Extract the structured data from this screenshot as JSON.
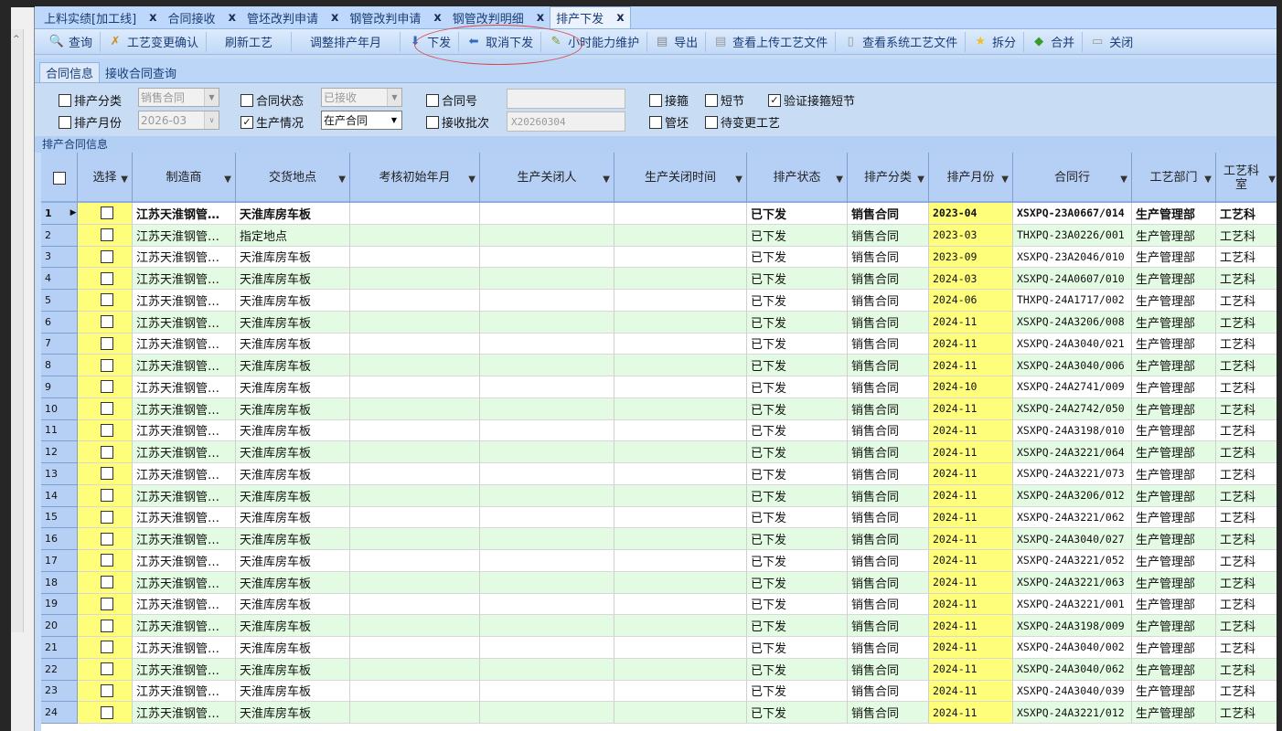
{
  "tabs": [
    {
      "label": "上料实绩[加工线]"
    },
    {
      "label": "合同接收"
    },
    {
      "label": "管坯改判申请"
    },
    {
      "label": "钢管改判申请"
    },
    {
      "label": "钢管改判明细"
    },
    {
      "label": "排产下发",
      "active": true
    }
  ],
  "toolbar": [
    {
      "icon": "search-icon",
      "glyph": "🔍",
      "label": "查询"
    },
    {
      "icon": "tools-icon",
      "glyph": "✗",
      "label": "工艺变更确认"
    },
    {
      "icon": "",
      "glyph": "",
      "label": "刷新工艺"
    },
    {
      "icon": "",
      "glyph": "",
      "label": "调整排产年月"
    },
    {
      "icon": "arrow-down-icon",
      "glyph": "⬇",
      "label": "下发"
    },
    {
      "icon": "arrow-left-icon",
      "glyph": "⬅",
      "label": "取消下发"
    },
    {
      "icon": "edit-icon",
      "glyph": "✎",
      "label": "小时能力维护"
    },
    {
      "icon": "export-icon",
      "glyph": "▤",
      "label": "导出"
    },
    {
      "icon": "document-icon",
      "glyph": "▤",
      "label": "查看上传工艺文件"
    },
    {
      "icon": "document-icon",
      "glyph": "▯",
      "label": "查看系统工艺文件"
    },
    {
      "icon": "star-icon",
      "glyph": "★",
      "label": "拆分"
    },
    {
      "icon": "merge-icon",
      "glyph": "◆",
      "label": "合并"
    },
    {
      "icon": "close-icon",
      "glyph": "▭",
      "label": "关闭"
    }
  ],
  "subtabs": [
    {
      "label": "合同信息"
    },
    {
      "label": "接收合同查询"
    }
  ],
  "filters": {
    "paichan_fenlei": {
      "label": "排产分类",
      "checked": false,
      "value": "销售合同"
    },
    "paichan_yuefen": {
      "label": "排产月份",
      "checked": false,
      "value": "2026-03"
    },
    "hetong_zhuangtai": {
      "label": "合同状态",
      "checked": false,
      "value": "已接收"
    },
    "shengchan_qingkuang": {
      "label": "生产情况",
      "checked": true,
      "value": "在产合同"
    },
    "hetong_hao": {
      "label": "合同号",
      "checked": false,
      "value": ""
    },
    "jieshou_pici": {
      "label": "接收批次",
      "checked": false,
      "value": "X20260304"
    },
    "jiegu": {
      "label": "接箍",
      "checked": false
    },
    "duanjie": {
      "label": "短节",
      "checked": false
    },
    "yanzheng": {
      "label": "验证接箍短节",
      "checked": true
    },
    "guanpi": {
      "label": "管坯",
      "checked": false
    },
    "daibiangeng": {
      "label": "待变更工艺",
      "checked": false
    }
  },
  "section_label": "排产合同信息",
  "columns": [
    "选择",
    "制造商",
    "交货地点",
    "考核初始年月",
    "生产关闭人",
    "生产关闭时间",
    "排产状态",
    "排产分类",
    "排产月份",
    "合同行",
    "工艺部门",
    "工艺科室"
  ],
  "colors": {
    "header": "#b6d0f5",
    "alt_row": "#e2fbe2",
    "yellow": "#fffe7a"
  },
  "rows": [
    [
      "1",
      "江苏天淮钢管…",
      "天淮库房车板",
      "",
      "",
      "",
      "已下发",
      "销售合同",
      "2023-04",
      "XSXPQ-23A0667/014",
      "生产管理部",
      "工艺科"
    ],
    [
      "2",
      "江苏天淮钢管…",
      "指定地点",
      "",
      "",
      "",
      "已下发",
      "销售合同",
      "2023-03",
      "THXPQ-23A0226/001",
      "生产管理部",
      "工艺科"
    ],
    [
      "3",
      "江苏天淮钢管…",
      "天淮库房车板",
      "",
      "",
      "",
      "已下发",
      "销售合同",
      "2023-09",
      "XSXPQ-23A2046/010",
      "生产管理部",
      "工艺科"
    ],
    [
      "4",
      "江苏天淮钢管…",
      "天淮库房车板",
      "",
      "",
      "",
      "已下发",
      "销售合同",
      "2024-03",
      "XSXPQ-24A0607/010",
      "生产管理部",
      "工艺科"
    ],
    [
      "5",
      "江苏天淮钢管…",
      "天淮库房车板",
      "",
      "",
      "",
      "已下发",
      "销售合同",
      "2024-06",
      "THXPQ-24A1717/002",
      "生产管理部",
      "工艺科"
    ],
    [
      "6",
      "江苏天淮钢管…",
      "天淮库房车板",
      "",
      "",
      "",
      "已下发",
      "销售合同",
      "2024-11",
      "XSXPQ-24A3206/008",
      "生产管理部",
      "工艺科"
    ],
    [
      "7",
      "江苏天淮钢管…",
      "天淮库房车板",
      "",
      "",
      "",
      "已下发",
      "销售合同",
      "2024-11",
      "XSXPQ-24A3040/021",
      "生产管理部",
      "工艺科"
    ],
    [
      "8",
      "江苏天淮钢管…",
      "天淮库房车板",
      "",
      "",
      "",
      "已下发",
      "销售合同",
      "2024-11",
      "XSXPQ-24A3040/006",
      "生产管理部",
      "工艺科"
    ],
    [
      "9",
      "江苏天淮钢管…",
      "天淮库房车板",
      "",
      "",
      "",
      "已下发",
      "销售合同",
      "2024-10",
      "XSXPQ-24A2741/009",
      "生产管理部",
      "工艺科"
    ],
    [
      "10",
      "江苏天淮钢管…",
      "天淮库房车板",
      "",
      "",
      "",
      "已下发",
      "销售合同",
      "2024-11",
      "XSXPQ-24A2742/050",
      "生产管理部",
      "工艺科"
    ],
    [
      "11",
      "江苏天淮钢管…",
      "天淮库房车板",
      "",
      "",
      "",
      "已下发",
      "销售合同",
      "2024-11",
      "XSXPQ-24A3198/010",
      "生产管理部",
      "工艺科"
    ],
    [
      "12",
      "江苏天淮钢管…",
      "天淮库房车板",
      "",
      "",
      "",
      "已下发",
      "销售合同",
      "2024-11",
      "XSXPQ-24A3221/064",
      "生产管理部",
      "工艺科"
    ],
    [
      "13",
      "江苏天淮钢管…",
      "天淮库房车板",
      "",
      "",
      "",
      "已下发",
      "销售合同",
      "2024-11",
      "XSXPQ-24A3221/073",
      "生产管理部",
      "工艺科"
    ],
    [
      "14",
      "江苏天淮钢管…",
      "天淮库房车板",
      "",
      "",
      "",
      "已下发",
      "销售合同",
      "2024-11",
      "XSXPQ-24A3206/012",
      "生产管理部",
      "工艺科"
    ],
    [
      "15",
      "江苏天淮钢管…",
      "天淮库房车板",
      "",
      "",
      "",
      "已下发",
      "销售合同",
      "2024-11",
      "XSXPQ-24A3221/062",
      "生产管理部",
      "工艺科"
    ],
    [
      "16",
      "江苏天淮钢管…",
      "天淮库房车板",
      "",
      "",
      "",
      "已下发",
      "销售合同",
      "2024-11",
      "XSXPQ-24A3040/027",
      "生产管理部",
      "工艺科"
    ],
    [
      "17",
      "江苏天淮钢管…",
      "天淮库房车板",
      "",
      "",
      "",
      "已下发",
      "销售合同",
      "2024-11",
      "XSXPQ-24A3221/052",
      "生产管理部",
      "工艺科"
    ],
    [
      "18",
      "江苏天淮钢管…",
      "天淮库房车板",
      "",
      "",
      "",
      "已下发",
      "销售合同",
      "2024-11",
      "XSXPQ-24A3221/063",
      "生产管理部",
      "工艺科"
    ],
    [
      "19",
      "江苏天淮钢管…",
      "天淮库房车板",
      "",
      "",
      "",
      "已下发",
      "销售合同",
      "2024-11",
      "XSXPQ-24A3221/001",
      "生产管理部",
      "工艺科"
    ],
    [
      "20",
      "江苏天淮钢管…",
      "天淮库房车板",
      "",
      "",
      "",
      "已下发",
      "销售合同",
      "2024-11",
      "XSXPQ-24A3198/009",
      "生产管理部",
      "工艺科"
    ],
    [
      "21",
      "江苏天淮钢管…",
      "天淮库房车板",
      "",
      "",
      "",
      "已下发",
      "销售合同",
      "2024-11",
      "XSXPQ-24A3040/002",
      "生产管理部",
      "工艺科"
    ],
    [
      "22",
      "江苏天淮钢管…",
      "天淮库房车板",
      "",
      "",
      "",
      "已下发",
      "销售合同",
      "2024-11",
      "XSXPQ-24A3040/062",
      "生产管理部",
      "工艺科"
    ],
    [
      "23",
      "江苏天淮钢管…",
      "天淮库房车板",
      "",
      "",
      "",
      "已下发",
      "销售合同",
      "2024-11",
      "XSXPQ-24A3040/039",
      "生产管理部",
      "工艺科"
    ],
    [
      "24",
      "江苏天淮钢管…",
      "天淮库房车板",
      "",
      "",
      "",
      "已下发",
      "销售合同",
      "2024-11",
      "XSXPQ-24A3221/012",
      "生产管理部",
      "工艺科"
    ]
  ]
}
